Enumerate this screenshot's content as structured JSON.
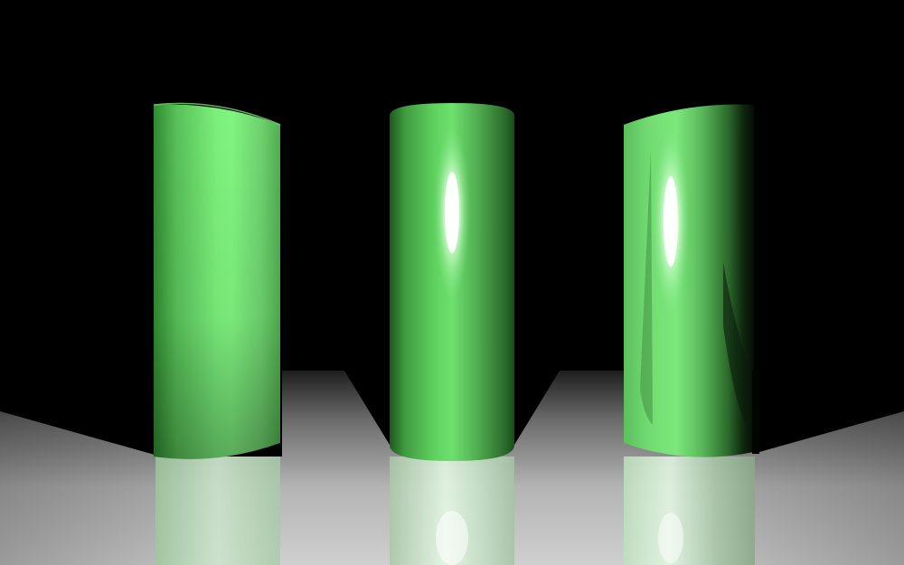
{
  "scene": {
    "background_color": "#000000",
    "floor_color_light": "#c8c8c8",
    "floor_color_dark": "#2a2a2a",
    "cylinder_color": "#66e066",
    "cylinder_highlight_color": "#ffffff",
    "cylinders": [
      {
        "material": "matte"
      },
      {
        "material": "glossy"
      },
      {
        "material": "glossy-reflective"
      }
    ]
  }
}
